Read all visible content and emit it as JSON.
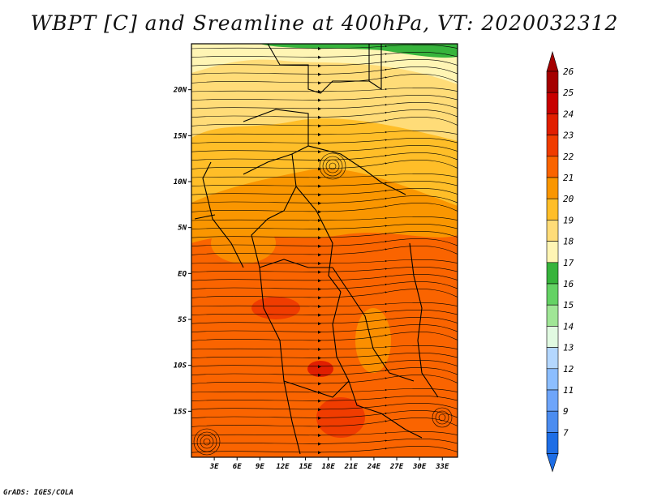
{
  "title": "WBPT [C] and Sreamline at 400hPa, VT: 2020032312",
  "credit": "GrADS: IGES/COLA",
  "map": {
    "lon_range": [
      0,
      35
    ],
    "lat_range": [
      -20,
      25
    ],
    "lat_ticks": [
      {
        "value": 20,
        "label": "20N"
      },
      {
        "value": 15,
        "label": "15N"
      },
      {
        "value": 10,
        "label": "10N"
      },
      {
        "value": 5,
        "label": "5N"
      },
      {
        "value": 0,
        "label": "EQ"
      },
      {
        "value": -5,
        "label": "5S"
      },
      {
        "value": -10,
        "label": "10S"
      },
      {
        "value": -15,
        "label": "15S"
      }
    ],
    "lon_ticks": [
      {
        "value": 3,
        "label": "3E"
      },
      {
        "value": 6,
        "label": "6E"
      },
      {
        "value": 9,
        "label": "9E"
      },
      {
        "value": 12,
        "label": "12E"
      },
      {
        "value": 15,
        "label": "15E"
      },
      {
        "value": 18,
        "label": "18E"
      },
      {
        "value": 21,
        "label": "21E"
      },
      {
        "value": 24,
        "label": "24E"
      },
      {
        "value": 27,
        "label": "27E"
      },
      {
        "value": 30,
        "label": "30E"
      },
      {
        "value": 33,
        "label": "33E"
      }
    ]
  },
  "colorbar": {
    "levels": [
      {
        "label": "26",
        "color": "#a50000"
      },
      {
        "label": "25",
        "color": "#c80000"
      },
      {
        "label": "24",
        "color": "#e11e00"
      },
      {
        "label": "23",
        "color": "#f03c00"
      },
      {
        "label": "22",
        "color": "#fa6400"
      },
      {
        "label": "21",
        "color": "#fa9600"
      },
      {
        "label": "20",
        "color": "#ffbe28"
      },
      {
        "label": "19",
        "color": "#ffdc78"
      },
      {
        "label": "18",
        "color": "#fff5b4"
      },
      {
        "label": "17",
        "color": "#37b43c"
      },
      {
        "label": "16",
        "color": "#64d264"
      },
      {
        "label": "15",
        "color": "#a0e696"
      },
      {
        "label": "14",
        "color": "#e1fae1"
      },
      {
        "label": "13",
        "color": "#b4d7ff"
      },
      {
        "label": "12",
        "color": "#8cbeff"
      },
      {
        "label": "11",
        "color": "#6ea5fa"
      },
      {
        "label": "9",
        "color": "#4b8cf0"
      },
      {
        "label": "7",
        "color": "#1e6ee6"
      }
    ]
  }
}
